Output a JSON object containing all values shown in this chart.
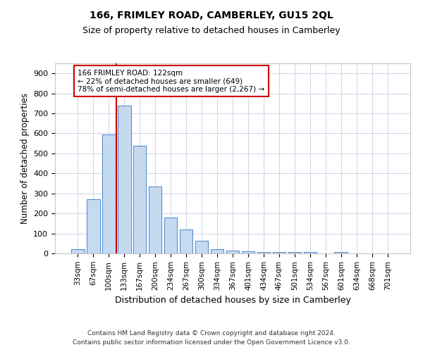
{
  "title": "166, FRIMLEY ROAD, CAMBERLEY, GU15 2QL",
  "subtitle": "Size of property relative to detached houses in Camberley",
  "xlabel": "Distribution of detached houses by size in Camberley",
  "ylabel": "Number of detached properties",
  "categories": [
    "33sqm",
    "67sqm",
    "100sqm",
    "133sqm",
    "167sqm",
    "200sqm",
    "234sqm",
    "267sqm",
    "300sqm",
    "334sqm",
    "367sqm",
    "401sqm",
    "434sqm",
    "467sqm",
    "501sqm",
    "534sqm",
    "567sqm",
    "601sqm",
    "634sqm",
    "668sqm",
    "701sqm"
  ],
  "values": [
    20,
    270,
    595,
    740,
    537,
    335,
    178,
    118,
    65,
    22,
    15,
    12,
    8,
    7,
    7,
    6,
    0,
    7,
    0,
    0,
    0
  ],
  "bar_color": "#c5d9f1",
  "bar_edge_color": "#4a86c8",
  "grid_color": "#d0d8e8",
  "background_color": "#ffffff",
  "annotation_text": "166 FRIMLEY ROAD: 122sqm\n← 22% of detached houses are smaller (649)\n78% of semi-detached houses are larger (2,267) →",
  "annotation_box_color": "#ffffff",
  "annotation_box_edge_color": "#cc0000",
  "footer_line1": "Contains HM Land Registry data © Crown copyright and database right 2024.",
  "footer_line2": "Contains public sector information licensed under the Open Government Licence v3.0.",
  "ylim": [
    0,
    950
  ],
  "yticks": [
    0,
    100,
    200,
    300,
    400,
    500,
    600,
    700,
    800,
    900
  ],
  "red_line_x": 2.5,
  "figsize": [
    6.0,
    5.0
  ],
  "dpi": 100
}
